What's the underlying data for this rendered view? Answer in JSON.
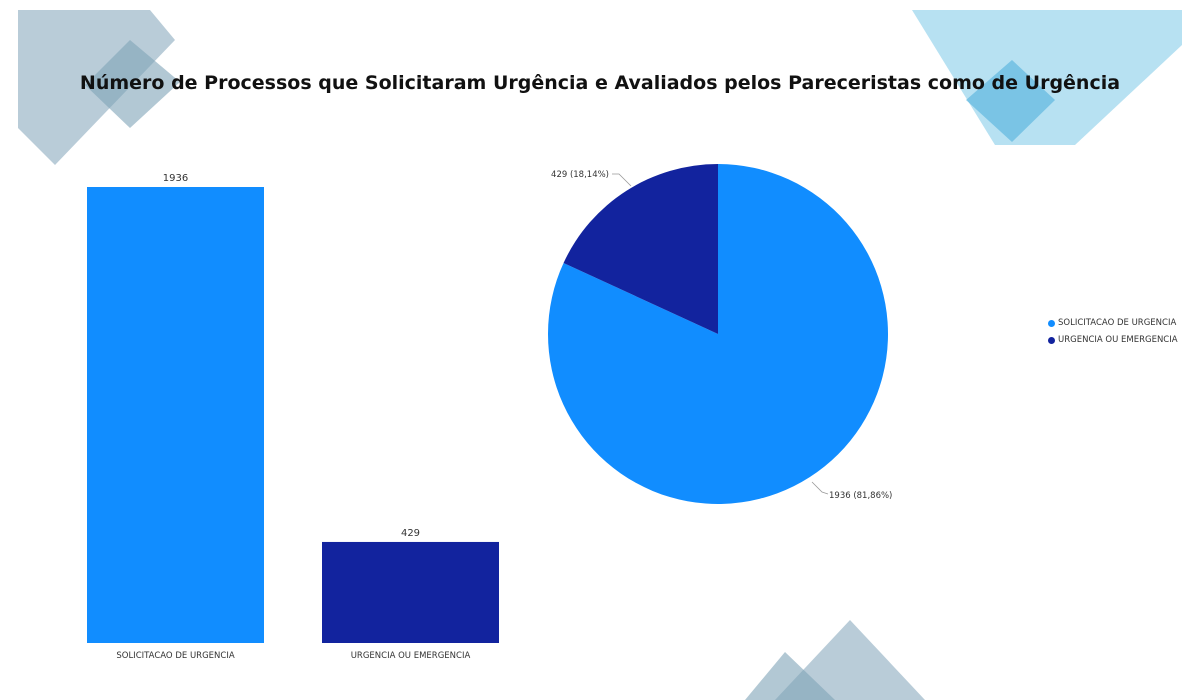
{
  "title": "Número de Processos que Solicitaram Urgência e Avaliados pelos Pareceristas como de Urgência",
  "colors": {
    "solicitacao": "#118DFF",
    "urgencia": "#12239E",
    "deco_blue": "#7FA3B8",
    "deco_light": "#9FD7EE"
  },
  "chart_data": [
    {
      "type": "bar",
      "categories": [
        "SOLICITACAO DE URGENCIA",
        "URGENCIA OU EMERGENCIA"
      ],
      "values": [
        1936,
        429
      ],
      "data_labels": [
        "1936",
        "429"
      ]
    },
    {
      "type": "pie",
      "categories": [
        "SOLICITACAO DE URGENCIA",
        "URGENCIA OU EMERGENCIA"
      ],
      "values": [
        1936,
        429
      ],
      "percentages": [
        81.86,
        18.14
      ],
      "data_labels": [
        "1936 (81,86%)",
        "429 (18,14%)"
      ],
      "legend": {
        "entries": [
          "SOLICITACAO DE URGENCIA",
          "URGENCIA OU EMERGENCIA"
        ],
        "placement": "right"
      }
    }
  ]
}
